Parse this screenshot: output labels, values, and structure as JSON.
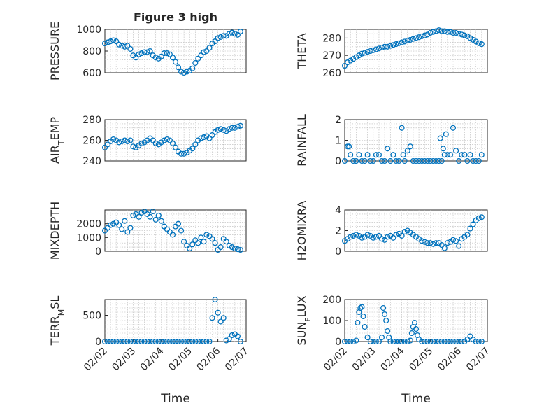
{
  "figure": {
    "title": "Figure 3 high"
  },
  "chart_data": [
    {
      "type": "scatter",
      "ylabel": "PRESSURE",
      "xlabel": "",
      "xlim": [
        0,
        5
      ],
      "ylim": [
        600,
        1000
      ],
      "yticks": [
        600,
        800,
        1000
      ],
      "xticks": [],
      "marker_color": "#0072BD",
      "series": [
        {
          "x": [
            0.0,
            0.1,
            0.2,
            0.3,
            0.4,
            0.5,
            0.6,
            0.7,
            0.8,
            0.9,
            1.0,
            1.1,
            1.2,
            1.3,
            1.4,
            1.5,
            1.6,
            1.7,
            1.8,
            1.9,
            2.0,
            2.1,
            2.2,
            2.3,
            2.4,
            2.5,
            2.6,
            2.7,
            2.8,
            2.9,
            3.0,
            3.1,
            3.2,
            3.3,
            3.4,
            3.5,
            3.6,
            3.7,
            3.8,
            3.9,
            4.0,
            4.1,
            4.2,
            4.3,
            4.4,
            4.5,
            4.6,
            4.7,
            4.8
          ],
          "y": [
            870,
            880,
            890,
            900,
            890,
            860,
            850,
            840,
            850,
            820,
            760,
            740,
            770,
            780,
            790,
            790,
            800,
            760,
            740,
            730,
            750,
            780,
            780,
            770,
            740,
            700,
            650,
            610,
            600,
            610,
            620,
            640,
            690,
            730,
            760,
            790,
            800,
            830,
            870,
            890,
            920,
            930,
            940,
            940,
            960,
            970,
            960,
            950,
            980
          ]
        }
      ]
    },
    {
      "type": "scatter",
      "ylabel": "THETA",
      "xlabel": "",
      "xlim": [
        0,
        5
      ],
      "ylim": [
        260,
        285
      ],
      "yticks": [
        260,
        270,
        280
      ],
      "xticks": [],
      "marker_color": "#0072BD",
      "series": [
        {
          "x": [
            0.0,
            0.1,
            0.2,
            0.3,
            0.4,
            0.5,
            0.6,
            0.7,
            0.8,
            0.9,
            1.0,
            1.1,
            1.2,
            1.3,
            1.4,
            1.5,
            1.6,
            1.7,
            1.8,
            1.9,
            2.0,
            2.1,
            2.2,
            2.3,
            2.4,
            2.5,
            2.6,
            2.7,
            2.8,
            2.9,
            3.0,
            3.1,
            3.2,
            3.3,
            3.4,
            3.5,
            3.6,
            3.7,
            3.8,
            3.9,
            4.0,
            4.1,
            4.2,
            4.3,
            4.4,
            4.5,
            4.6,
            4.7,
            4.8
          ],
          "y": [
            264,
            266,
            267,
            268,
            269,
            270,
            271,
            271.5,
            272,
            272.5,
            273,
            273.5,
            274,
            274.5,
            275,
            275,
            275.5,
            276,
            276.5,
            277,
            277.5,
            278,
            278.5,
            279,
            279.5,
            280,
            280.5,
            281,
            281.5,
            282,
            283,
            283.5,
            284,
            284.5,
            284,
            284,
            283.5,
            283.5,
            283,
            283,
            282.5,
            282,
            281.5,
            281,
            280,
            279,
            278,
            277,
            276.5
          ]
        }
      ]
    },
    {
      "type": "scatter",
      "ylabel": "AIR",
      "ylabel_sub": "T",
      "ylabel_rest": "EMP",
      "xlabel": "",
      "xlim": [
        0,
        5
      ],
      "ylim": [
        240,
        280
      ],
      "yticks": [
        240,
        260,
        280
      ],
      "xticks": [],
      "marker_color": "#0072BD",
      "series": [
        {
          "x": [
            0.0,
            0.1,
            0.2,
            0.3,
            0.4,
            0.5,
            0.6,
            0.7,
            0.8,
            0.9,
            1.0,
            1.1,
            1.2,
            1.3,
            1.4,
            1.5,
            1.6,
            1.7,
            1.8,
            1.9,
            2.0,
            2.1,
            2.2,
            2.3,
            2.4,
            2.5,
            2.6,
            2.7,
            2.8,
            2.9,
            3.0,
            3.1,
            3.2,
            3.3,
            3.4,
            3.5,
            3.6,
            3.7,
            3.8,
            3.9,
            4.0,
            4.1,
            4.2,
            4.3,
            4.4,
            4.5,
            4.6,
            4.7,
            4.8
          ],
          "y": [
            253,
            256,
            259,
            261,
            260,
            258,
            259,
            260,
            259,
            260,
            254,
            253,
            255,
            257,
            258,
            260,
            262,
            260,
            257,
            256,
            258,
            260,
            261,
            260,
            257,
            253,
            249,
            247,
            247,
            248,
            250,
            252,
            256,
            260,
            262,
            263,
            264,
            262,
            265,
            268,
            270,
            271,
            270,
            269,
            271,
            272,
            272,
            273,
            274
          ]
        }
      ]
    },
    {
      "type": "scatter",
      "ylabel": "RAINFALL",
      "xlabel": "",
      "xlim": [
        0,
        5
      ],
      "ylim": [
        0,
        2
      ],
      "yticks": [
        0,
        1,
        2
      ],
      "xticks": [],
      "marker_color": "#0072BD",
      "series": [
        {
          "x": [
            0.0,
            0.1,
            0.15,
            0.2,
            0.3,
            0.4,
            0.5,
            0.6,
            0.7,
            0.8,
            0.9,
            1.0,
            1.1,
            1.2,
            1.3,
            1.4,
            1.5,
            1.6,
            1.7,
            1.8,
            1.9,
            2.0,
            2.05,
            2.1,
            2.2,
            2.3,
            2.4,
            2.5,
            2.6,
            2.7,
            2.8,
            2.9,
            3.0,
            3.1,
            3.2,
            3.3,
            3.35,
            3.4,
            3.45,
            3.5,
            3.55,
            3.6,
            3.7,
            3.8,
            3.9,
            4.0,
            4.1,
            4.2,
            4.3,
            4.4,
            4.5,
            4.6,
            4.7,
            4.8
          ],
          "y": [
            0,
            0.7,
            0.7,
            0.3,
            0,
            0,
            0.3,
            0,
            0,
            0.3,
            0,
            0,
            0.3,
            0.3,
            0,
            0,
            0.6,
            0,
            0.3,
            0,
            0,
            1.6,
            0.3,
            0,
            0.5,
            0.7,
            0,
            0,
            0,
            0,
            0,
            0,
            0,
            0,
            0,
            0,
            1.1,
            0,
            0.6,
            0.3,
            1.3,
            0.3,
            0.3,
            1.6,
            0.5,
            0,
            0.3,
            0.3,
            0,
            0.3,
            0,
            0,
            0,
            0.3
          ]
        }
      ]
    },
    {
      "type": "scatter",
      "ylabel": "MIXDEPTH",
      "xlabel": "",
      "xlim": [
        0,
        5
      ],
      "ylim": [
        0,
        3000
      ],
      "yticks": [
        0,
        1000,
        2000
      ],
      "xticks": [],
      "marker_color": "#0072BD",
      "series": [
        {
          "x": [
            0.0,
            0.1,
            0.2,
            0.3,
            0.4,
            0.5,
            0.6,
            0.7,
            0.8,
            0.9,
            1.0,
            1.1,
            1.2,
            1.3,
            1.4,
            1.5,
            1.6,
            1.7,
            1.8,
            1.9,
            2.0,
            2.1,
            2.2,
            2.3,
            2.4,
            2.5,
            2.6,
            2.7,
            2.8,
            2.9,
            3.0,
            3.1,
            3.2,
            3.3,
            3.4,
            3.5,
            3.6,
            3.7,
            3.8,
            3.9,
            4.0,
            4.1,
            4.2,
            4.3,
            4.4,
            4.5,
            4.6,
            4.7,
            4.8
          ],
          "y": [
            1500,
            1700,
            1900,
            2000,
            2100,
            1900,
            1600,
            2200,
            1400,
            1700,
            2600,
            2700,
            2500,
            2800,
            2900,
            2700,
            2500,
            2900,
            2300,
            2600,
            2200,
            1800,
            1600,
            1400,
            1200,
            1800,
            2000,
            1500,
            700,
            400,
            200,
            500,
            800,
            600,
            1000,
            700,
            1200,
            1100,
            900,
            600,
            100,
            300,
            900,
            700,
            400,
            300,
            200,
            150,
            100
          ]
        }
      ]
    },
    {
      "type": "scatter",
      "ylabel": "H2OMIXRA",
      "xlabel": "",
      "xlim": [
        0,
        5
      ],
      "ylim": [
        0,
        4
      ],
      "yticks": [
        0,
        2,
        4
      ],
      "xticks": [],
      "marker_color": "#0072BD",
      "series": [
        {
          "x": [
            0.0,
            0.1,
            0.2,
            0.3,
            0.4,
            0.5,
            0.6,
            0.7,
            0.8,
            0.9,
            1.0,
            1.1,
            1.2,
            1.3,
            1.4,
            1.5,
            1.6,
            1.7,
            1.8,
            1.9,
            2.0,
            2.1,
            2.2,
            2.3,
            2.4,
            2.5,
            2.6,
            2.7,
            2.8,
            2.9,
            3.0,
            3.1,
            3.2,
            3.3,
            3.4,
            3.5,
            3.6,
            3.7,
            3.8,
            3.9,
            4.0,
            4.1,
            4.2,
            4.3,
            4.4,
            4.5,
            4.6,
            4.7,
            4.8
          ],
          "y": [
            1.0,
            1.2,
            1.4,
            1.5,
            1.6,
            1.5,
            1.3,
            1.4,
            1.6,
            1.5,
            1.3,
            1.4,
            1.5,
            1.2,
            1.1,
            1.4,
            1.5,
            1.3,
            1.6,
            1.7,
            1.5,
            1.9,
            2.0,
            1.8,
            1.6,
            1.4,
            1.2,
            1.0,
            0.9,
            0.8,
            0.8,
            0.7,
            0.8,
            0.8,
            0.6,
            0.3,
            0.8,
            0.9,
            1.1,
            1.0,
            0.5,
            1.2,
            1.4,
            1.6,
            2.2,
            2.6,
            3.0,
            3.2,
            3.3
          ]
        }
      ]
    },
    {
      "type": "scatter",
      "ylabel": "TERR",
      "ylabel_sub": "M",
      "ylabel_rest": "SL",
      "xlabel": "Time",
      "xlim": [
        0,
        5
      ],
      "ylim": [
        0,
        800
      ],
      "yticks": [
        0,
        500
      ],
      "xticks": [
        "02/02",
        "02/03",
        "02/04",
        "02/05",
        "02/06",
        "02/07"
      ],
      "marker_color": "#0072BD",
      "series": [
        {
          "x": [
            0.0,
            0.1,
            0.2,
            0.3,
            0.4,
            0.5,
            0.6,
            0.7,
            0.8,
            0.9,
            1.0,
            1.1,
            1.2,
            1.3,
            1.4,
            1.5,
            1.6,
            1.7,
            1.8,
            1.9,
            2.0,
            2.1,
            2.2,
            2.3,
            2.4,
            2.5,
            2.6,
            2.7,
            2.8,
            2.9,
            3.0,
            3.1,
            3.2,
            3.3,
            3.4,
            3.5,
            3.6,
            3.7,
            3.8,
            3.9,
            4.0,
            4.1,
            4.2,
            4.3,
            4.4,
            4.5,
            4.6,
            4.7,
            4.8
          ],
          "y": [
            0,
            0,
            0,
            0,
            0,
            0,
            0,
            0,
            0,
            0,
            0,
            0,
            0,
            0,
            0,
            0,
            0,
            0,
            0,
            0,
            0,
            0,
            0,
            0,
            0,
            0,
            0,
            0,
            0,
            0,
            0,
            0,
            0,
            0,
            0,
            0,
            0,
            0,
            450,
            800,
            550,
            380,
            450,
            20,
            50,
            120,
            140,
            100,
            0
          ]
        }
      ]
    },
    {
      "type": "scatter",
      "ylabel": "SUN",
      "ylabel_sub": "F",
      "ylabel_rest": "LUX",
      "xlabel": "Time",
      "xlim": [
        0,
        5
      ],
      "ylim": [
        0,
        200
      ],
      "yticks": [
        0,
        100,
        200
      ],
      "xticks": [
        "02/02",
        "02/03",
        "02/04",
        "02/05",
        "02/06",
        "02/07"
      ],
      "marker_color": "#0072BD",
      "series": [
        {
          "x": [
            0.0,
            0.1,
            0.2,
            0.3,
            0.4,
            0.45,
            0.5,
            0.55,
            0.6,
            0.65,
            0.7,
            0.8,
            0.9,
            1.0,
            1.1,
            1.2,
            1.3,
            1.35,
            1.4,
            1.45,
            1.5,
            1.55,
            1.6,
            1.7,
            1.8,
            1.9,
            2.0,
            2.1,
            2.2,
            2.3,
            2.35,
            2.4,
            2.45,
            2.5,
            2.55,
            2.6,
            2.7,
            2.8,
            2.9,
            3.0,
            3.1,
            3.2,
            3.3,
            3.4,
            3.5,
            3.6,
            3.7,
            3.8,
            3.9,
            4.0,
            4.1,
            4.2,
            4.3,
            4.4,
            4.5,
            4.6,
            4.7,
            4.8
          ],
          "y": [
            0,
            0,
            0,
            0,
            5,
            90,
            140,
            160,
            165,
            120,
            70,
            20,
            0,
            0,
            0,
            0,
            20,
            160,
            130,
            100,
            50,
            20,
            0,
            0,
            0,
            0,
            0,
            0,
            0,
            5,
            40,
            70,
            90,
            60,
            30,
            10,
            0,
            0,
            0,
            0,
            0,
            0,
            0,
            0,
            0,
            0,
            0,
            0,
            0,
            0,
            0,
            0,
            10,
            25,
            10,
            0,
            0,
            0
          ]
        }
      ]
    }
  ]
}
